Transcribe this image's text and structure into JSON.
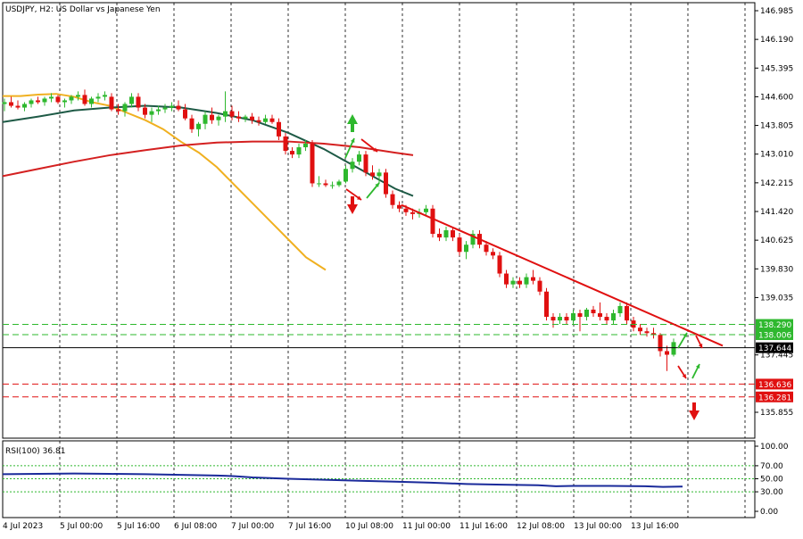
{
  "chart_data": [
    {
      "type": "candlestick",
      "title": "USDJPY, H2:  US Dollar vs Japanese Yen",
      "y_ticks": [
        "146.985",
        "146.190",
        "145.395",
        "144.600",
        "143.805",
        "143.010",
        "142.215",
        "141.420",
        "140.625",
        "139.830",
        "139.035",
        "137.445",
        "135.855"
      ],
      "ylim": [
        135.4,
        147.3
      ],
      "x_ticks": [
        "4 Jul 2023",
        "5 Jul 00:00",
        "5 Jul 16:00",
        "6 Jul 08:00",
        "7 Jul 00:00",
        "7 Jul 16:00",
        "10 Jul 08:00",
        "11 Jul 00:00",
        "11 Jul 16:00",
        "12 Jul 08:00",
        "13 Jul 00:00",
        "13 Jul 16:00"
      ],
      "price_labels": [
        {
          "value": 138.29,
          "text": "138.290",
          "color": "#2eb82e"
        },
        {
          "value": 138.006,
          "text": "138.006",
          "color": "#2eb82e"
        },
        {
          "value": 137.644,
          "text": "137.644",
          "color": "#000000"
        },
        {
          "value": 136.636,
          "text": "136.636",
          "color": "#e01010"
        },
        {
          "value": 136.281,
          "text": "136.281",
          "color": "#e01010"
        }
      ],
      "candles": [
        [
          144.4,
          144.55,
          144.2,
          144.45
        ],
        [
          144.45,
          144.6,
          144.3,
          144.35
        ],
        [
          144.35,
          144.5,
          144.25,
          144.3
        ],
        [
          144.3,
          144.45,
          144.2,
          144.4
        ],
        [
          144.4,
          144.55,
          144.3,
          144.5
        ],
        [
          144.5,
          144.6,
          144.4,
          144.45
        ],
        [
          144.45,
          144.6,
          144.35,
          144.55
        ],
        [
          144.55,
          144.7,
          144.45,
          144.6
        ],
        [
          144.6,
          144.65,
          144.4,
          144.45
        ],
        [
          144.45,
          144.55,
          144.3,
          144.5
        ],
        [
          144.5,
          144.65,
          144.4,
          144.6
        ],
        [
          144.6,
          144.75,
          144.5,
          144.65
        ],
        [
          144.65,
          144.8,
          144.35,
          144.4
        ],
        [
          144.4,
          144.6,
          144.3,
          144.55
        ],
        [
          144.55,
          144.7,
          144.45,
          144.6
        ],
        [
          144.6,
          144.75,
          144.5,
          144.65
        ],
        [
          144.6,
          144.7,
          144.2,
          144.25
        ],
        [
          144.25,
          144.4,
          144.1,
          144.2
        ],
        [
          144.2,
          144.45,
          144.05,
          144.4
        ],
        [
          144.4,
          144.7,
          144.3,
          144.6
        ],
        [
          144.6,
          144.7,
          144.2,
          144.3
        ],
        [
          144.3,
          144.4,
          144.0,
          144.1
        ],
        [
          144.1,
          144.3,
          143.9,
          144.2
        ],
        [
          144.2,
          144.35,
          144.1,
          144.25
        ],
        [
          144.25,
          144.4,
          144.15,
          144.3
        ],
        [
          144.3,
          144.45,
          144.2,
          144.35
        ],
        [
          144.35,
          144.5,
          144.2,
          144.25
        ],
        [
          144.25,
          144.4,
          143.95,
          144.0
        ],
        [
          144.0,
          144.1,
          143.6,
          143.7
        ],
        [
          143.7,
          143.9,
          143.5,
          143.85
        ],
        [
          143.85,
          144.2,
          143.7,
          144.1
        ],
        [
          144.1,
          144.3,
          143.85,
          143.95
        ],
        [
          143.95,
          144.1,
          143.8,
          144.05
        ],
        [
          144.05,
          144.75,
          143.9,
          144.2
        ],
        [
          144.2,
          144.35,
          143.95,
          144.05
        ],
        [
          144.05,
          144.2,
          143.9,
          144.0
        ],
        [
          144.0,
          144.1,
          143.9,
          144.05
        ],
        [
          144.05,
          144.15,
          143.85,
          143.95
        ],
        [
          143.95,
          144.05,
          143.8,
          143.9
        ],
        [
          143.9,
          144.1,
          143.85,
          144.0
        ],
        [
          144.0,
          144.1,
          143.85,
          143.9
        ],
        [
          143.9,
          144.0,
          143.4,
          143.5
        ],
        [
          143.5,
          143.6,
          143.0,
          143.1
        ],
        [
          143.1,
          143.2,
          142.9,
          143.0
        ],
        [
          143.0,
          143.3,
          142.9,
          143.2
        ],
        [
          143.2,
          143.4,
          143.1,
          143.3
        ],
        [
          143.3,
          143.4,
          142.1,
          142.2
        ],
        [
          142.2,
          142.4,
          142.1,
          142.2
        ],
        [
          142.2,
          142.3,
          142.1,
          142.15
        ],
        [
          142.15,
          142.25,
          142.05,
          142.15
        ],
        [
          142.15,
          142.3,
          142.1,
          142.25
        ],
        [
          142.25,
          142.7,
          142.2,
          142.6
        ],
        [
          142.6,
          142.9,
          142.5,
          142.8
        ],
        [
          142.8,
          143.1,
          142.7,
          143.0
        ],
        [
          143.0,
          143.1,
          142.4,
          142.5
        ],
        [
          142.5,
          142.7,
          142.3,
          142.4
        ],
        [
          142.4,
          142.6,
          142.2,
          142.5
        ],
        [
          142.5,
          142.6,
          141.8,
          141.9
        ],
        [
          141.9,
          142.0,
          141.5,
          141.6
        ],
        [
          141.6,
          141.7,
          141.4,
          141.5
        ],
        [
          141.5,
          141.6,
          141.3,
          141.4
        ],
        [
          141.4,
          141.5,
          141.2,
          141.35
        ],
        [
          141.35,
          141.5,
          141.25,
          141.4
        ],
        [
          141.4,
          141.6,
          141.3,
          141.5
        ],
        [
          141.5,
          141.6,
          140.7,
          140.8
        ],
        [
          140.8,
          140.95,
          140.6,
          140.7
        ],
        [
          140.7,
          141.0,
          140.6,
          140.9
        ],
        [
          140.9,
          141.0,
          140.6,
          140.7
        ],
        [
          140.7,
          140.8,
          140.2,
          140.3
        ],
        [
          140.3,
          140.6,
          140.1,
          140.5
        ],
        [
          140.5,
          140.9,
          140.4,
          140.8
        ],
        [
          140.8,
          140.9,
          140.4,
          140.5
        ],
        [
          140.5,
          140.6,
          140.2,
          140.3
        ],
        [
          140.3,
          140.4,
          140.1,
          140.2
        ],
        [
          140.2,
          140.3,
          139.6,
          139.7
        ],
        [
          139.7,
          139.8,
          139.3,
          139.4
        ],
        [
          139.4,
          139.6,
          139.3,
          139.5
        ],
        [
          139.5,
          139.6,
          139.3,
          139.4
        ],
        [
          139.4,
          139.7,
          139.3,
          139.6
        ],
        [
          139.6,
          139.8,
          139.4,
          139.5
        ],
        [
          139.5,
          139.6,
          139.1,
          139.2
        ],
        [
          139.2,
          139.3,
          138.4,
          138.5
        ],
        [
          138.5,
          138.6,
          138.2,
          138.4
        ],
        [
          138.4,
          138.6,
          138.3,
          138.5
        ],
        [
          138.5,
          138.6,
          138.3,
          138.4
        ],
        [
          138.4,
          138.7,
          138.3,
          138.6
        ],
        [
          138.6,
          138.7,
          138.1,
          138.5
        ],
        [
          138.5,
          138.75,
          138.4,
          138.7
        ],
        [
          138.7,
          138.8,
          138.5,
          138.6
        ],
        [
          138.6,
          138.9,
          138.4,
          138.5
        ],
        [
          138.5,
          138.6,
          138.3,
          138.4
        ],
        [
          138.4,
          138.7,
          138.3,
          138.6
        ],
        [
          138.6,
          138.9,
          138.5,
          138.8
        ],
        [
          138.8,
          138.9,
          138.3,
          138.4
        ],
        [
          138.4,
          138.5,
          138.1,
          138.2
        ],
        [
          138.2,
          138.3,
          138.0,
          138.1
        ],
        [
          138.1,
          138.2,
          137.95,
          138.05
        ],
        [
          138.05,
          138.2,
          137.9,
          138.0
        ],
        [
          138.0,
          138.05,
          137.4,
          137.55
        ],
        [
          137.55,
          137.7,
          137.0,
          137.45
        ],
        [
          137.45,
          137.9,
          137.4,
          137.8
        ]
      ],
      "ma_series": [
        {
          "color": "#f0b020",
          "points": [
            [
              0,
              144.62
            ],
            [
              20,
              144.62
            ],
            [
              40,
              144.66
            ],
            [
              60,
              144.68
            ],
            [
              80,
              144.6
            ],
            [
              100,
              144.45
            ],
            [
              120,
              144.35
            ],
            [
              140,
              144.15
            ],
            [
              160,
              143.95
            ],
            [
              180,
              143.7
            ],
            [
              200,
              143.35
            ],
            [
              220,
              143.05
            ],
            [
              240,
              142.65
            ],
            [
              260,
              142.15
            ],
            [
              280,
              141.65
            ],
            [
              300,
              141.15
            ],
            [
              320,
              140.65
            ],
            [
              340,
              140.15
            ],
            [
              362,
              139.8
            ]
          ]
        },
        {
          "color": "#1e5a46",
          "points": [
            [
              0,
              143.9
            ],
            [
              40,
              144.05
            ],
            [
              80,
              144.22
            ],
            [
              120,
              144.3
            ],
            [
              160,
              144.35
            ],
            [
              200,
              144.3
            ],
            [
              240,
              144.15
            ],
            [
              280,
              143.95
            ],
            [
              320,
              143.6
            ],
            [
              360,
              143.15
            ],
            [
              400,
              142.6
            ],
            [
              440,
              142.05
            ],
            [
              460,
              141.85
            ]
          ]
        },
        {
          "color": "#d42020",
          "points": [
            [
              0,
              142.4
            ],
            [
              40,
              142.6
            ],
            [
              80,
              142.8
            ],
            [
              120,
              142.98
            ],
            [
              160,
              143.12
            ],
            [
              200,
              143.25
            ],
            [
              240,
              143.33
            ],
            [
              280,
              143.36
            ],
            [
              320,
              143.36
            ],
            [
              360,
              143.3
            ],
            [
              400,
              143.2
            ],
            [
              440,
              143.05
            ],
            [
              460,
              142.98
            ]
          ]
        }
      ],
      "trendline": {
        "color": "#e01010",
        "from": [
          450,
          141.6
        ],
        "to": [
          810,
          137.7
        ]
      },
      "hlines": [
        {
          "value": 138.29,
          "color": "#2eb82e",
          "style": "dashed"
        },
        {
          "value": 138.006,
          "color": "#2eb82e",
          "style": "dashed"
        },
        {
          "value": 137.644,
          "color": "#000000",
          "style": "solid"
        },
        {
          "value": 136.636,
          "color": "#e01010",
          "style": "dashed"
        },
        {
          "value": 136.281,
          "color": "#e01010",
          "style": "dashed"
        }
      ]
    },
    {
      "type": "line",
      "title": "RSI(100) 36.81",
      "y_ticks": [
        "100.00",
        "70.00",
        "50.00",
        "30.00",
        "0.00"
      ],
      "ylim": [
        0,
        100
      ],
      "levels": [
        70,
        50,
        30
      ],
      "series": [
        {
          "color": "#1a2a9a",
          "points": [
            [
              0,
              57
            ],
            [
              40,
              57.5
            ],
            [
              80,
              58
            ],
            [
              120,
              57.5
            ],
            [
              160,
              57
            ],
            [
              200,
              56
            ],
            [
              240,
              55
            ],
            [
              260,
              54
            ],
            [
              280,
              52
            ],
            [
              300,
              51
            ],
            [
              320,
              50
            ],
            [
              360,
              48.5
            ],
            [
              400,
              47
            ],
            [
              440,
              45.5
            ],
            [
              480,
              44
            ],
            [
              520,
              42
            ],
            [
              560,
              41
            ],
            [
              600,
              40
            ],
            [
              620,
              38.5
            ],
            [
              640,
              39
            ],
            [
              680,
              39
            ],
            [
              720,
              38.5
            ],
            [
              740,
              37.5
            ],
            [
              762,
              38
            ]
          ]
        }
      ]
    }
  ],
  "colors": {
    "bull": "#2eb82e",
    "bear": "#e01010",
    "grid": "#000000",
    "arrow_up": "#2eb82e",
    "arrow_down": "#e01010"
  }
}
